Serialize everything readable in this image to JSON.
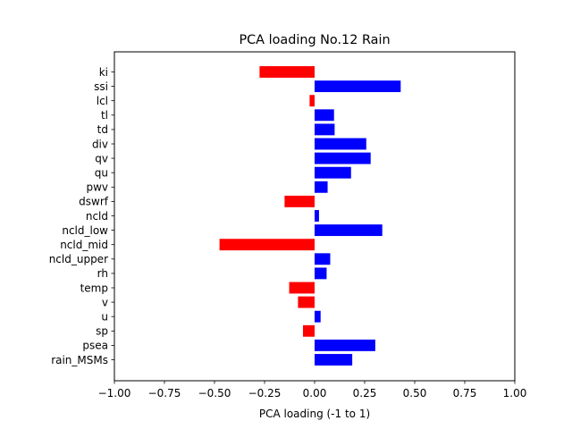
{
  "chart_data": {
    "type": "bar",
    "orientation": "horizontal",
    "title": "PCA loading No.12 Rain",
    "xlabel": "PCA loading (-1 to 1)",
    "ylabel": "",
    "xlim": [
      -1.0,
      1.0
    ],
    "xticks": [
      "−1.00",
      "−0.75",
      "−0.50",
      "−0.25",
      "0.00",
      "0.25",
      "0.50",
      "0.75",
      "1.00"
    ],
    "xtick_values": [
      -1.0,
      -0.75,
      -0.5,
      -0.25,
      0.0,
      0.25,
      0.5,
      0.75,
      1.0
    ],
    "grid": false,
    "positive_color": "#0000ff",
    "negative_color": "#ff0000",
    "categories": [
      "ki",
      "ssi",
      "lcl",
      "tl",
      "td",
      "div",
      "qv",
      "qu",
      "pwv",
      "dswrf",
      "ncld",
      "ncld_low",
      "ncld_mid",
      "ncld_upper",
      "rh",
      "temp",
      "v",
      "u",
      "sp",
      "psea",
      "rain_MSMs"
    ],
    "values": [
      -0.275,
      0.43,
      -0.025,
      0.097,
      0.1,
      0.258,
      0.28,
      0.182,
      0.065,
      -0.15,
      0.022,
      0.338,
      -0.475,
      0.078,
      0.06,
      -0.127,
      -0.083,
      0.03,
      -0.058,
      0.303,
      0.188
    ]
  }
}
